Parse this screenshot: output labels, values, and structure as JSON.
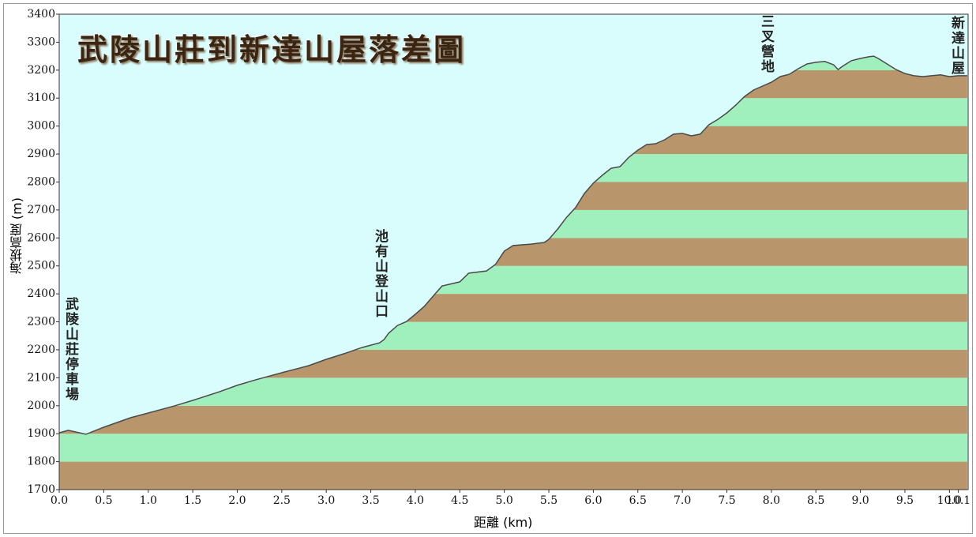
{
  "chart_data": {
    "type": "area",
    "title": "武陵山莊到新達山屋落差圖",
    "x_label": "距離 (km)",
    "y_label": "海拔高度 (m)",
    "x": [
      0,
      0.1,
      0.3,
      0.5,
      0.8,
      1.0,
      1.3,
      1.5,
      1.8,
      2.0,
      2.2,
      2.5,
      2.8,
      3.0,
      3.2,
      3.4,
      3.6,
      3.65,
      3.7,
      3.8,
      3.9,
      4.0,
      4.1,
      4.2,
      4.3,
      4.5,
      4.6,
      4.8,
      4.9,
      5.0,
      5.1,
      5.3,
      5.45,
      5.5,
      5.6,
      5.7,
      5.8,
      5.9,
      6.0,
      6.1,
      6.2,
      6.3,
      6.4,
      6.5,
      6.6,
      6.7,
      6.8,
      6.9,
      7.0,
      7.1,
      7.2,
      7.3,
      7.4,
      7.5,
      7.6,
      7.7,
      7.8,
      7.9,
      8.0,
      8.1,
      8.2,
      8.3,
      8.4,
      8.5,
      8.6,
      8.7,
      8.75,
      8.8,
      8.9,
      9.0,
      9.1,
      9.15,
      9.2,
      9.3,
      9.4,
      9.5,
      9.6,
      9.7,
      9.8,
      9.9,
      10.0,
      10.1,
      10.2
    ],
    "values": [
      1903,
      1912,
      1898,
      1923,
      1957,
      1974,
      2000,
      2019,
      2050,
      2073,
      2092,
      2118,
      2143,
      2166,
      2186,
      2208,
      2225,
      2237,
      2259,
      2287,
      2301,
      2327,
      2355,
      2392,
      2428,
      2443,
      2474,
      2482,
      2505,
      2553,
      2573,
      2578,
      2584,
      2595,
      2632,
      2674,
      2708,
      2759,
      2796,
      2824,
      2849,
      2855,
      2889,
      2914,
      2934,
      2937,
      2951,
      2971,
      2974,
      2965,
      2971,
      3005,
      3024,
      3047,
      3075,
      3106,
      3129,
      3143,
      3157,
      3177,
      3185,
      3205,
      3222,
      3228,
      3231,
      3219,
      3202,
      3214,
      3234,
      3242,
      3248,
      3250,
      3242,
      3222,
      3202,
      3188,
      3180,
      3177,
      3180,
      3183,
      3177,
      3180,
      3180
    ],
    "xlim": [
      0,
      10.21
    ],
    "ylim": [
      1700,
      3400
    ],
    "xticks": [
      {
        "value": 0,
        "label": "0.0"
      },
      0.5,
      {
        "value": 1,
        "label": "1.0"
      },
      1.5,
      {
        "value": 2,
        "label": "2.0"
      },
      2.5,
      {
        "value": 3,
        "label": "3.0"
      },
      3.5,
      {
        "value": 4,
        "label": "4.0"
      },
      4.5,
      {
        "value": 5,
        "label": "5.0"
      },
      5.5,
      {
        "value": 6,
        "label": "6.0"
      },
      6.5,
      {
        "value": 7,
        "label": "7.0"
      },
      7.5,
      {
        "value": 8,
        "label": "8.0"
      },
      8.5,
      {
        "value": 9,
        "label": "9.0"
      },
      9.5,
      {
        "value": 10,
        "label": "10.0"
      },
      10.1
    ],
    "yticks": [
      1700,
      1800,
      1900,
      2000,
      2100,
      2200,
      2300,
      2400,
      2500,
      2600,
      2700,
      2800,
      2900,
      3000,
      3100,
      3200,
      3300,
      3400
    ],
    "line_color": "#4a4a4a",
    "sky_color": "#d9fdfd",
    "band_colors": [
      "#b8956a",
      "#9ff0bc"
    ],
    "annotations": [
      {
        "text": "武陵山莊停車場"
      },
      {
        "text": "池有山登山口"
      },
      {
        "text": "三叉營地"
      },
      {
        "text": "新達山屋"
      }
    ]
  }
}
